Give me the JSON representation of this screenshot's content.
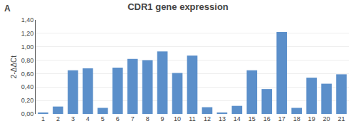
{
  "chart_data": {
    "type": "bar",
    "title": "CDR1 gene expression",
    "annotations": [
      {
        "text": "A"
      }
    ],
    "ylabel": "2-ΔΔCt",
    "categories": [
      1,
      2,
      3,
      4,
      5,
      6,
      7,
      8,
      9,
      10,
      11,
      12,
      13,
      14,
      15,
      16,
      17,
      18,
      19,
      20,
      21
    ],
    "values": [
      0.02,
      0.11,
      0.65,
      0.68,
      0.09,
      0.69,
      0.82,
      0.8,
      0.93,
      0.61,
      0.87,
      0.1,
      0.02,
      0.12,
      0.65,
      0.37,
      1.22,
      0.09,
      0.54,
      0.45,
      0.59
    ],
    "color": "#5b8fca",
    "ylim": [
      0,
      1.4
    ],
    "yticks": [
      {
        "value": 0.0,
        "label": "0,00"
      },
      {
        "value": 0.2,
        "label": "0,20"
      },
      {
        "value": 0.4,
        "label": "0,40"
      },
      {
        "value": 0.6,
        "label": "0,60"
      },
      {
        "value": 0.8,
        "label": "0,80"
      },
      {
        "value": 1.0,
        "label": "1,00"
      },
      {
        "value": 1.2,
        "label": "1,20"
      },
      {
        "value": 1.4,
        "label": "1,40"
      }
    ],
    "grid": true
  }
}
